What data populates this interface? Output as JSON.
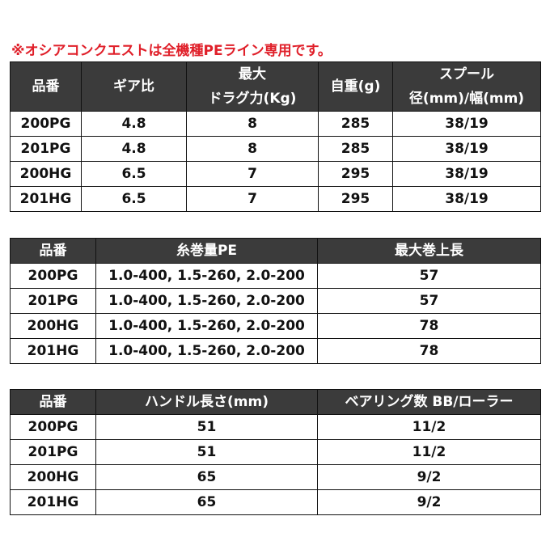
{
  "notice": "※オシアコンクエストは全機種PEライン専用です。",
  "tables": [
    {
      "header": [
        [
          "品番"
        ],
        [
          "ギア比"
        ],
        [
          "最大",
          "ドラグ力(Kg)"
        ],
        [
          "自重(g)"
        ],
        [
          "スプール",
          "径(mm)/幅(mm)"
        ]
      ],
      "rows": [
        [
          "200PG",
          "4.8",
          "8",
          "285",
          "38/19"
        ],
        [
          "201PG",
          "4.8",
          "8",
          "285",
          "38/19"
        ],
        [
          "200HG",
          "6.5",
          "7",
          "295",
          "38/19"
        ],
        [
          "201HG",
          "6.5",
          "7",
          "295",
          "38/19"
        ]
      ]
    },
    {
      "header": [
        [
          "品番"
        ],
        [
          "糸巻量PE"
        ],
        [
          "最大巻上長"
        ]
      ],
      "rows": [
        [
          "200PG",
          "1.0-400, 1.5-260, 2.0-200",
          "57"
        ],
        [
          "201PG",
          "1.0-400, 1.5-260, 2.0-200",
          "57"
        ],
        [
          "200HG",
          "1.0-400, 1.5-260, 2.0-200",
          "78"
        ],
        [
          "201HG",
          "1.0-400, 1.5-260, 2.0-200",
          "78"
        ]
      ]
    },
    {
      "header": [
        [
          "品番"
        ],
        [
          "ハンドル長さ(mm)"
        ],
        [
          "ベアリング数 BB/ローラー"
        ]
      ],
      "rows": [
        [
          "200PG",
          "51",
          "11/2"
        ],
        [
          "201PG",
          "51",
          "11/2"
        ],
        [
          "200HG",
          "65",
          "9/2"
        ],
        [
          "201HG",
          "65",
          "9/2"
        ]
      ]
    }
  ]
}
